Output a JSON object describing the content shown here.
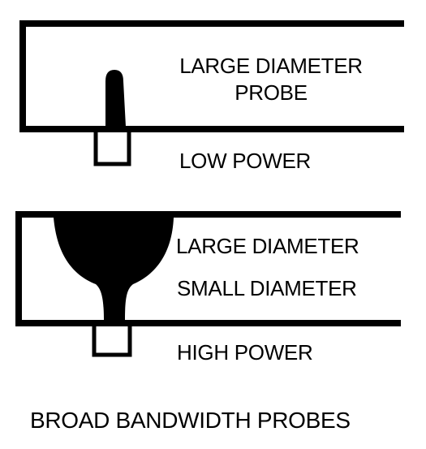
{
  "colors": {
    "ink": "#000000",
    "background": "#ffffff"
  },
  "top_probe": {
    "label_line1": "LARGE DIAMETER",
    "label_line2": "PROBE",
    "power_label": "LOW POWER"
  },
  "bottom_probe": {
    "label_large": "LARGE DIAMETER",
    "label_small": "SMALL DIAMETER",
    "power_label": "HIGH POWER"
  },
  "caption": "BROAD BANDWIDTH PROBES"
}
